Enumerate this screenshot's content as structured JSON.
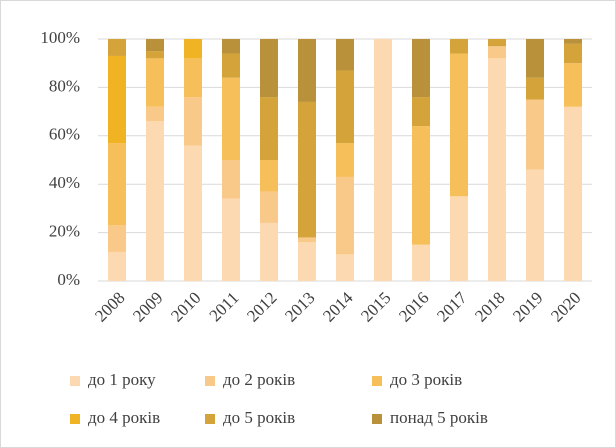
{
  "chart_data": {
    "type": "stacked_bar",
    "categories": [
      "2008",
      "2009",
      "2010",
      "2011",
      "2012",
      "2013",
      "2014",
      "2015",
      "2016",
      "2017",
      "2018",
      "2019",
      "2020"
    ],
    "series": [
      {
        "name": "до 1 року",
        "color": "#fcd9b0",
        "values": [
          12,
          66,
          56,
          34,
          24,
          16,
          11,
          100,
          15,
          35,
          92,
          46,
          72
        ]
      },
      {
        "name": "до 2 років",
        "color": "#f9c98a",
        "values": [
          11,
          6,
          20,
          16,
          13,
          2,
          32,
          0,
          0,
          0,
          5,
          29,
          0
        ]
      },
      {
        "name": "до 3 років",
        "color": "#f7bf5a",
        "values": [
          34,
          20,
          16,
          34,
          13,
          0,
          14,
          0,
          49,
          59,
          0,
          0,
          18
        ]
      },
      {
        "name": "до 4 років",
        "color": "#f0b323",
        "values": [
          36,
          0,
          8,
          0,
          0,
          0,
          0,
          0,
          0,
          0,
          0,
          0,
          0
        ]
      },
      {
        "name": "до 5 років",
        "color": "#d4a43a",
        "values": [
          7,
          3,
          0,
          10,
          26,
          56,
          30,
          0,
          12,
          6,
          3,
          9,
          8
        ]
      },
      {
        "name": "понад 5 років",
        "color": "#b8913a",
        "values": [
          0,
          5,
          0,
          6,
          24,
          26,
          13,
          0,
          24,
          0,
          0,
          16,
          2
        ]
      }
    ],
    "ylim": [
      0,
      100
    ],
    "yticks": [
      {
        "value": 0,
        "label": "0%"
      },
      {
        "value": 20,
        "label": "20%"
      },
      {
        "value": 40,
        "label": "40%"
      },
      {
        "value": 60,
        "label": "60%"
      },
      {
        "value": 80,
        "label": "80%"
      },
      {
        "value": 100,
        "label": "100%"
      }
    ],
    "grid": true,
    "legend": "bottom"
  }
}
